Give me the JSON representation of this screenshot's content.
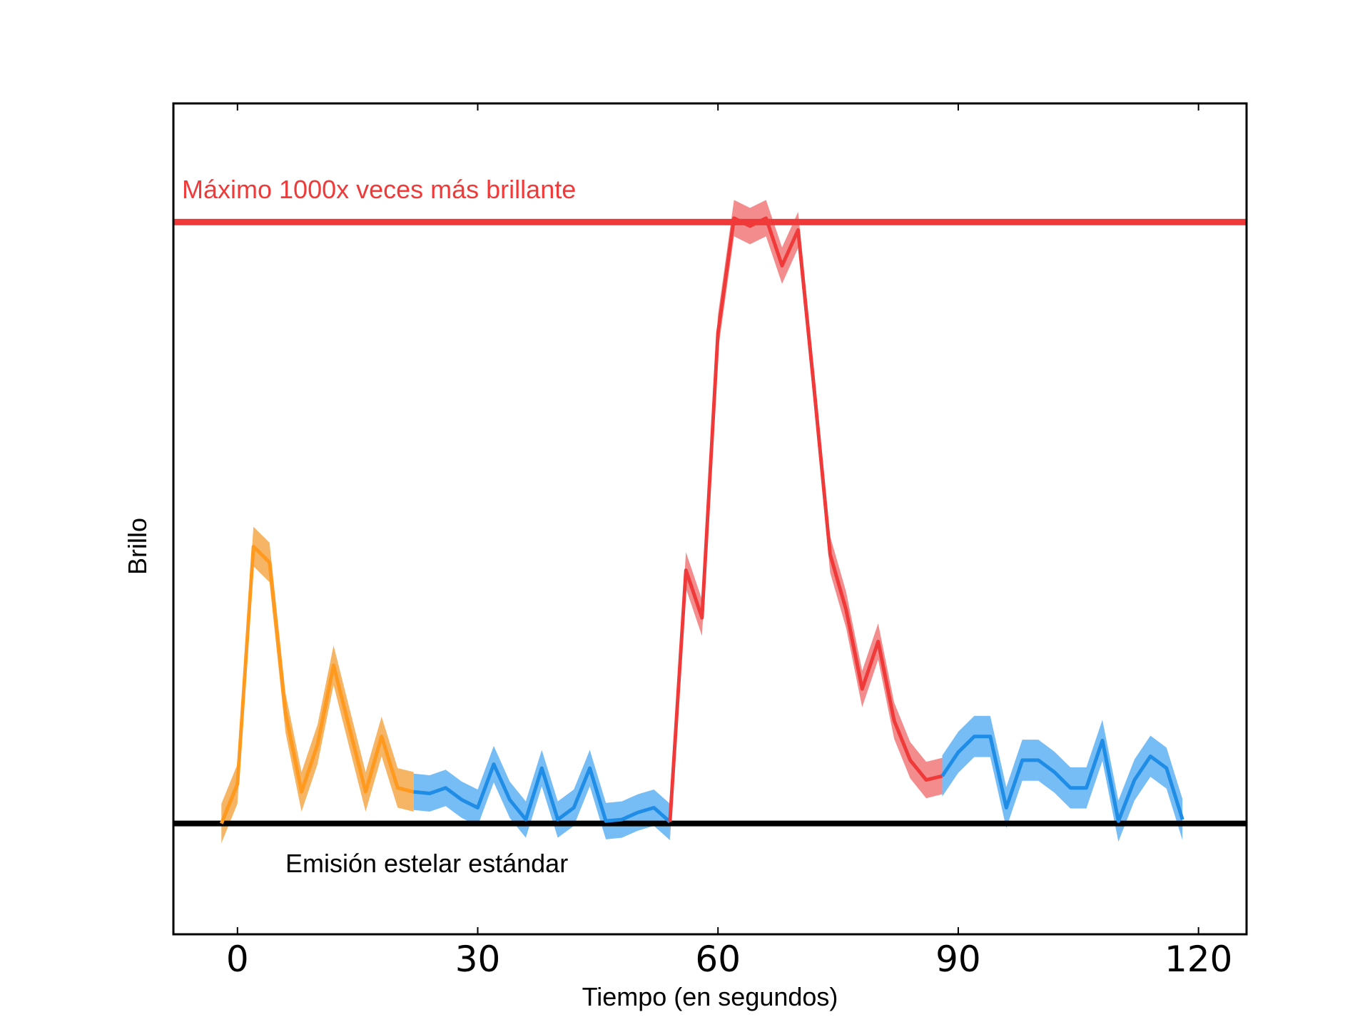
{
  "chart_data": {
    "type": "line",
    "xlabel": "Tiempo (en segundos)",
    "ylabel": "Brillo",
    "xlim": [
      -8,
      126
    ],
    "ylim": [
      -14,
      91
    ],
    "xticks": [
      0,
      30,
      60,
      90,
      120
    ],
    "xtick_labels": [
      "0",
      "30",
      "60",
      "90",
      "120"
    ],
    "grid": false,
    "legend": "none",
    "reference_lines": [
      {
        "id": "max",
        "y": 76,
        "label": "Máximo 1000x veces más brillante",
        "color": "#f03a3a"
      },
      {
        "id": "standard",
        "y": 0,
        "label": "Emisión estelar estándar",
        "color": "#000000"
      }
    ],
    "series": [
      {
        "color": "#ff9a1f",
        "band_color": "#f6b465",
        "x": [
          -2,
          0,
          2,
          4,
          6,
          8,
          10,
          12,
          14,
          16,
          18,
          20,
          22
        ],
        "y": [
          0,
          5,
          35,
          33,
          14,
          4,
          10,
          20,
          12,
          4,
          11,
          4.5,
          4
        ],
        "band": 2.5
      },
      {
        "color": "#1f8ce6",
        "band_color": "#77bdf5",
        "x": [
          22,
          24,
          26,
          28,
          30,
          32,
          34,
          36,
          38,
          40,
          42,
          44,
          46,
          48,
          50,
          52,
          54
        ],
        "y": [
          4,
          3.8,
          4.5,
          3,
          2,
          7.5,
          3,
          0.5,
          7,
          0.5,
          2,
          7,
          0.3,
          0.5,
          1.4,
          2,
          0.2
        ],
        "band": 2.3
      },
      {
        "color": "#f03a3a",
        "band_color": "#f38d8d",
        "x": [
          54,
          56,
          58,
          60,
          62,
          64,
          66,
          68,
          70,
          72,
          74,
          76,
          78,
          80,
          82,
          84,
          86,
          88
        ],
        "y": [
          0.2,
          32,
          26,
          62,
          76.5,
          75.5,
          76.5,
          70.5,
          75,
          55,
          34,
          27,
          17,
          23,
          13,
          8,
          5.5,
          6
        ],
        "band": 2.3
      },
      {
        "color": "#1f8ce6",
        "band_color": "#77bdf5",
        "x": [
          88,
          90,
          92,
          94,
          96,
          98,
          100,
          102,
          104,
          106,
          108,
          110,
          112,
          114,
          116,
          118
        ],
        "y": [
          6,
          9,
          11,
          11,
          2,
          8,
          8,
          6.5,
          4.5,
          4.5,
          10.5,
          0.3,
          5.5,
          8.5,
          7,
          0.5
        ],
        "band": 2.6
      }
    ]
  }
}
